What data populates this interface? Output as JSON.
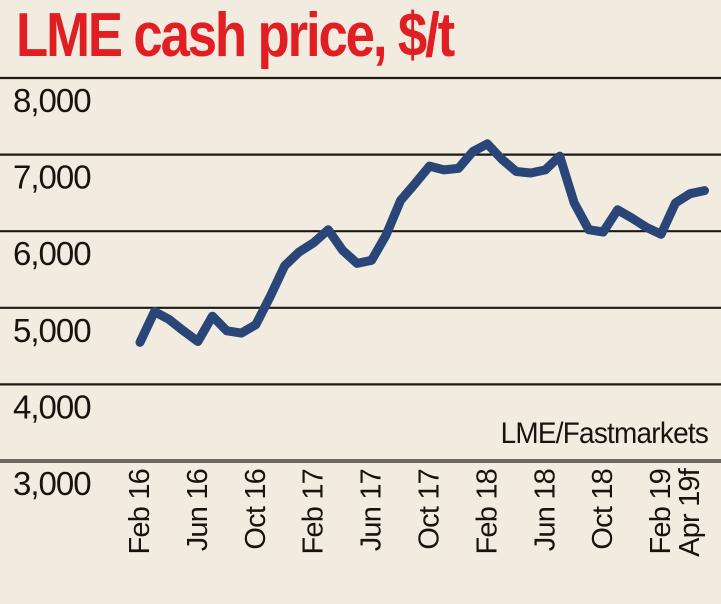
{
  "title": "LME cash price, $/t",
  "source_credit": "LME/Fastmarkets",
  "colors": {
    "background": "#f2ece0",
    "title_red": "#e11e22",
    "line_navy": "#2a4577",
    "gridline_black": "#1d1a16",
    "axis_gray": "#6c675f",
    "text_black": "#17130e"
  },
  "chart_data": {
    "type": "line",
    "title": "LME cash price, $/t",
    "unit": "$/t",
    "source": "LME/Fastmarkets",
    "ylim": [
      3000,
      8000
    ],
    "y_ticks": [
      8000,
      7000,
      6000,
      5000,
      4000,
      3000
    ],
    "y_tick_labels": [
      "8,000",
      "7,000",
      "6,000",
      "5,000",
      "4,000",
      "3,000"
    ],
    "x_tick_labels": [
      "Feb 16",
      "Jun 16",
      "Oct 16",
      "Feb 17",
      "Jun 17",
      "Oct 17",
      "Feb 18",
      "Jun 18",
      "Oct 18",
      "Feb 19",
      "Apr 19f"
    ],
    "x_tick_month_indices": [
      0,
      4,
      8,
      12,
      16,
      20,
      24,
      28,
      32,
      36,
      38
    ],
    "grid": "horizontal-only",
    "legend_position": "none",
    "series": [
      {
        "name": "LME cash price ($/t)",
        "color": "#2a4577",
        "months": [
          "Feb 16",
          "Mar 16",
          "Apr 16",
          "May 16",
          "Jun 16",
          "Jul 16",
          "Aug 16",
          "Sep 16",
          "Oct 16",
          "Nov 16",
          "Dec 16",
          "Jan 17",
          "Feb 17",
          "Mar 17",
          "Apr 17",
          "May 17",
          "Jun 17",
          "Jul 17",
          "Aug 17",
          "Sep 17",
          "Oct 17",
          "Nov 17",
          "Dec 17",
          "Jan 18",
          "Feb 18",
          "Mar 18",
          "Apr 18",
          "May 18",
          "Jun 18",
          "Jul 18",
          "Aug 18",
          "Sep 18",
          "Oct 18",
          "Nov 18",
          "Dec 18",
          "Jan 19",
          "Feb 19",
          "Mar 19",
          "Apr 19f",
          ""
        ],
        "values": [
          4550,
          4950,
          4850,
          4700,
          4560,
          4890,
          4700,
          4670,
          4780,
          5150,
          5550,
          5730,
          5850,
          6020,
          5750,
          5580,
          5620,
          5950,
          6400,
          6620,
          6850,
          6800,
          6820,
          7040,
          7140,
          6940,
          6780,
          6760,
          6800,
          6980,
          6370,
          6020,
          5990,
          6280,
          6170,
          6050,
          5960,
          6370,
          6490,
          6530
        ]
      }
    ]
  }
}
